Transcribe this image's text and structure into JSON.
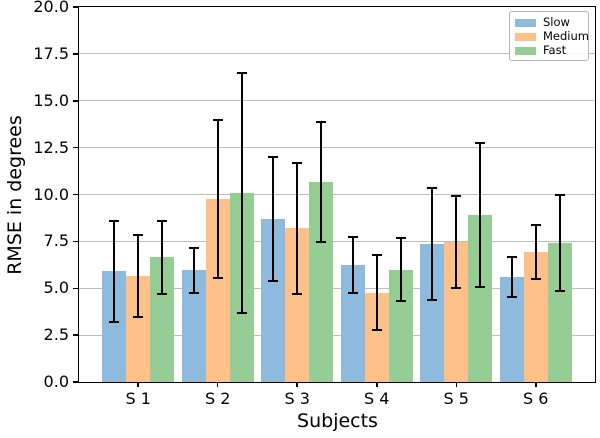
{
  "chart_data": {
    "type": "bar",
    "title": "",
    "xlabel": "Subjects",
    "ylabel": "RMSE in degrees",
    "categories": [
      "S 1",
      "S 2",
      "S 3",
      "S 4",
      "S 5",
      "S 6"
    ],
    "series": [
      {
        "name": "Slow",
        "color": "#8ebbdd",
        "values": [
          5.9,
          5.95,
          8.7,
          6.25,
          7.35,
          5.6
        ],
        "errors": [
          2.7,
          1.2,
          3.3,
          1.5,
          3.0,
          1.05
        ]
      },
      {
        "name": "Medium",
        "color": "#fec189",
        "values": [
          5.65,
          9.75,
          8.2,
          4.75,
          7.45,
          6.95
        ],
        "errors": [
          2.2,
          4.2,
          3.5,
          2.0,
          2.45,
          1.45
        ]
      },
      {
        "name": "Fast",
        "color": "#95cd95",
        "values": [
          6.65,
          10.1,
          10.65,
          6.0,
          8.9,
          7.4
        ],
        "errors": [
          1.95,
          6.4,
          3.2,
          1.7,
          3.85,
          2.55
        ]
      }
    ],
    "ylim": [
      0,
      20
    ],
    "yticks": [
      0,
      2.5,
      5,
      7.5,
      10,
      12.5,
      15,
      17.5,
      20
    ],
    "ytick_labels": [
      "0.0",
      "2.5",
      "5.0",
      "7.5",
      "10.0",
      "12.5",
      "15.0",
      "17.5",
      "20.0"
    ],
    "grid": true,
    "grid_color": "#bdbdbd",
    "error_bar_color": "#000000",
    "legend_position": "upper right",
    "bar_width_units": 0.3,
    "xlim": [
      -0.745,
      5.745
    ]
  }
}
